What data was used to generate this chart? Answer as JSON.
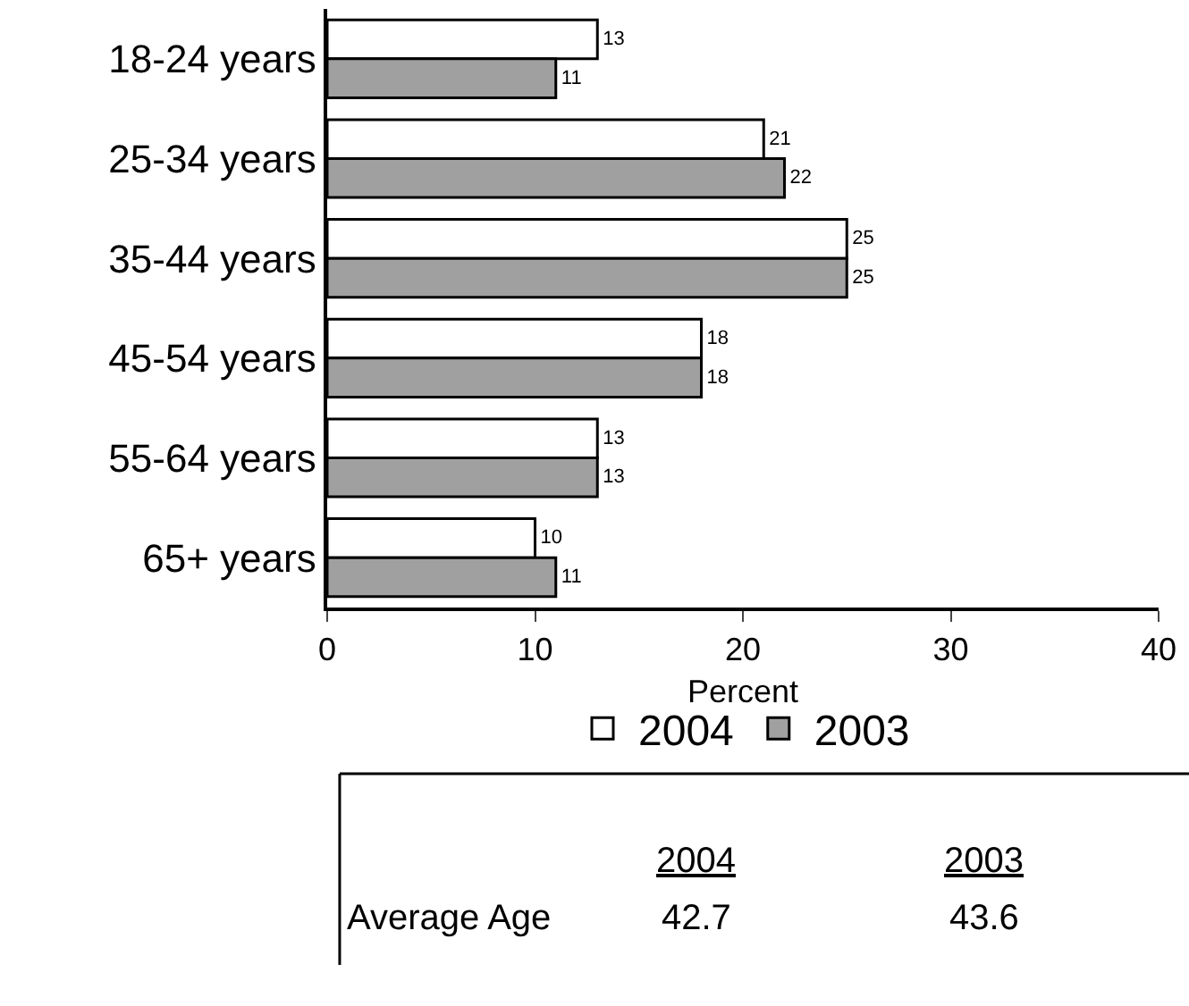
{
  "chart_data": {
    "type": "bar",
    "orientation": "horizontal",
    "xlabel": "Percent",
    "categories": [
      "18-24 years",
      "25-34 years",
      "35-44 years",
      "45-54 years",
      "55-64 years",
      "65+ years"
    ],
    "series": [
      {
        "name": "2004",
        "color": "#ffffff",
        "values": [
          13,
          21,
          25,
          18,
          13,
          10
        ]
      },
      {
        "name": "2003",
        "color": "#a0a0a0",
        "values": [
          11,
          22,
          25,
          18,
          13,
          11
        ]
      }
    ],
    "xlim": [
      0,
      40
    ],
    "xticks": [
      0,
      10,
      20,
      30,
      40
    ],
    "grid": false,
    "legend": "bottom",
    "data_labels": true,
    "annotations": [
      "2004",
      "2003",
      "Average Age",
      "42.7",
      "43.6"
    ]
  }
}
